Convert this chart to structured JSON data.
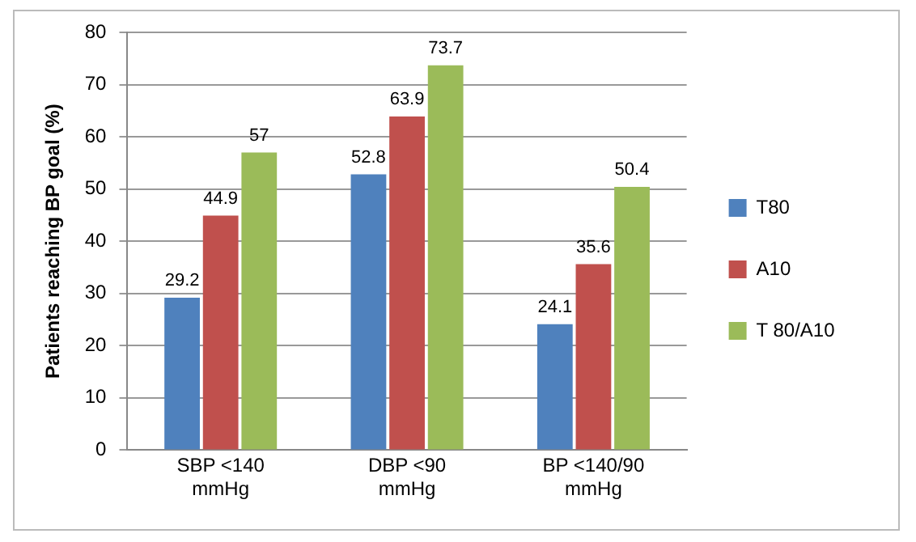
{
  "chart_data": {
    "type": "bar",
    "ylabel": "Patients reaching BP goal (%)",
    "categories": [
      "SBP <140 mmHg",
      "DBP <90 mmHg",
      "BP <140/90 mmHg"
    ],
    "series": [
      {
        "name": "T80",
        "color": "#4f81bd",
        "values": [
          29.2,
          52.8,
          24.1
        ]
      },
      {
        "name": "A10",
        "color": "#c0504d",
        "values": [
          44.9,
          63.9,
          35.6
        ]
      },
      {
        "name": "T 80/A10",
        "color": "#9bbb59",
        "values": [
          57,
          73.7,
          50.4
        ]
      }
    ],
    "ylim": [
      0,
      80
    ],
    "yticks": [
      0,
      10,
      20,
      30,
      40,
      50,
      60,
      70,
      80
    ],
    "grid": "y",
    "legend": "right",
    "data_labels": true
  }
}
